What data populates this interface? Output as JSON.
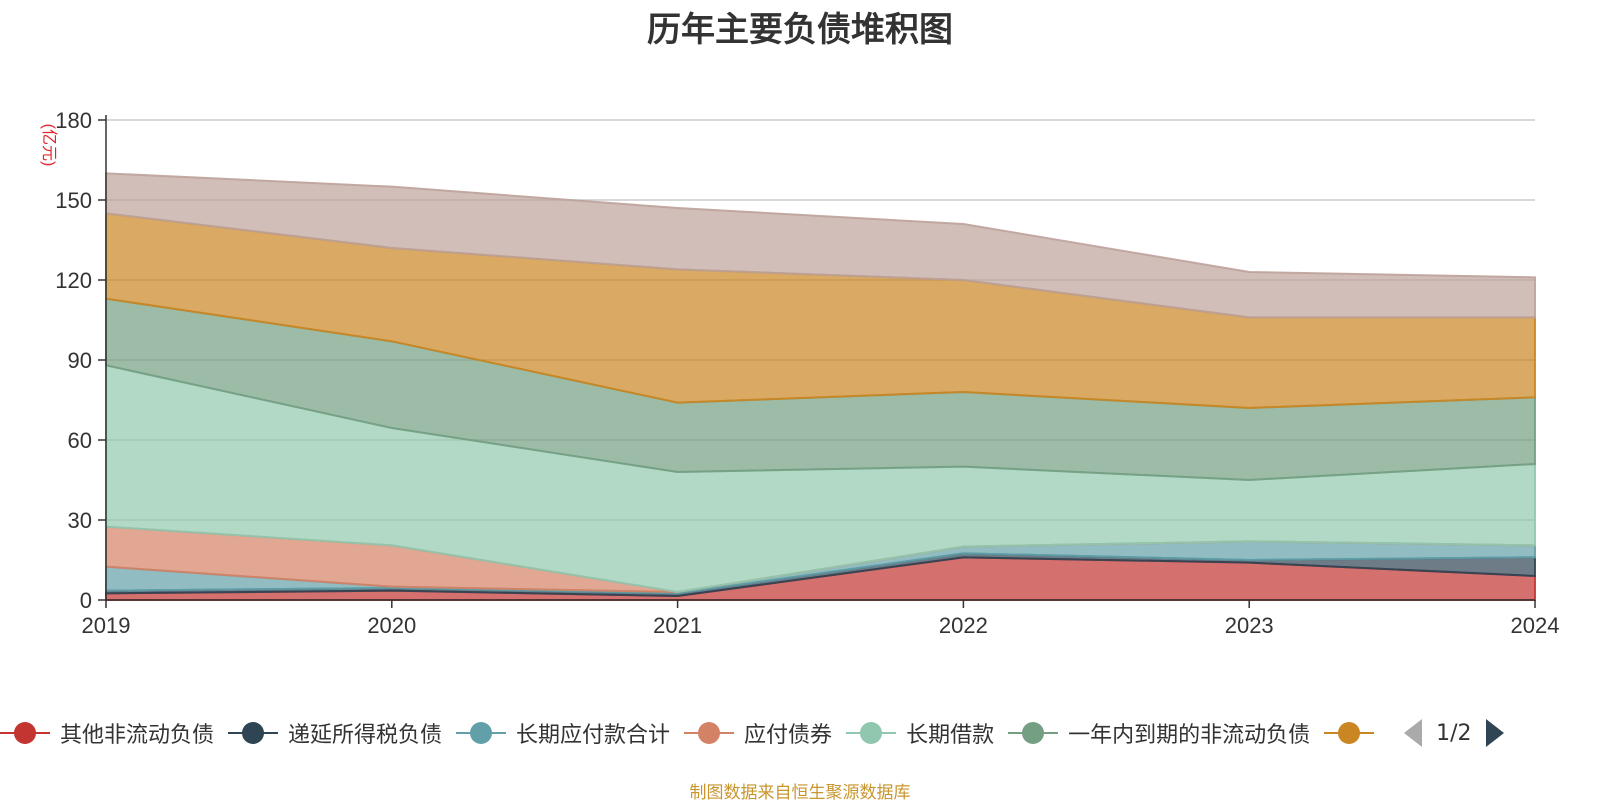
{
  "title": "历年主要负债堆积图",
  "unit_label": "(亿元)",
  "source": "制图数据来自恒生聚源数据库",
  "legend_pager": "1/2",
  "chart_data": {
    "type": "area",
    "stacked": true,
    "title": "历年主要负债堆积图",
    "ylabel": "(亿元)",
    "ylim": [
      0,
      180
    ],
    "yticks": [
      0,
      30,
      60,
      90,
      120,
      150,
      180
    ],
    "grid": true,
    "legend_position": "bottom",
    "categories": [
      "2019",
      "2020",
      "2021",
      "2022",
      "2023",
      "2024"
    ],
    "series": [
      {
        "name": "其他非流动负债",
        "color": "#c23531",
        "values": [
          2.5,
          3.5,
          1.5,
          16,
          14,
          9
        ]
      },
      {
        "name": "递延所得税负债",
        "color": "#2f4554",
        "values": [
          1,
          1,
          1,
          1.5,
          1,
          7
        ]
      },
      {
        "name": "长期应付款合计",
        "color": "#61a0a8",
        "values": [
          9,
          0.5,
          0.5,
          2.5,
          7,
          4.5
        ]
      },
      {
        "name": "应付债券",
        "color": "#d48265",
        "values": [
          15,
          15.5,
          0,
          0,
          0,
          0
        ]
      },
      {
        "name": "长期借款",
        "color": "#91c7ae",
        "values": [
          60.5,
          44,
          45,
          30,
          23,
          30.5
        ]
      },
      {
        "name": "一年内到期的非流动负债",
        "color": "#749f83",
        "values": [
          25,
          32.5,
          26,
          28,
          27,
          25
        ]
      },
      {
        "name": "",
        "color": "#ca8622",
        "values": [
          32,
          35,
          50,
          42,
          34,
          30
        ]
      },
      {
        "name": "",
        "color": "#bda29a",
        "values": [
          15,
          23,
          23,
          21,
          17,
          15
        ]
      }
    ]
  }
}
